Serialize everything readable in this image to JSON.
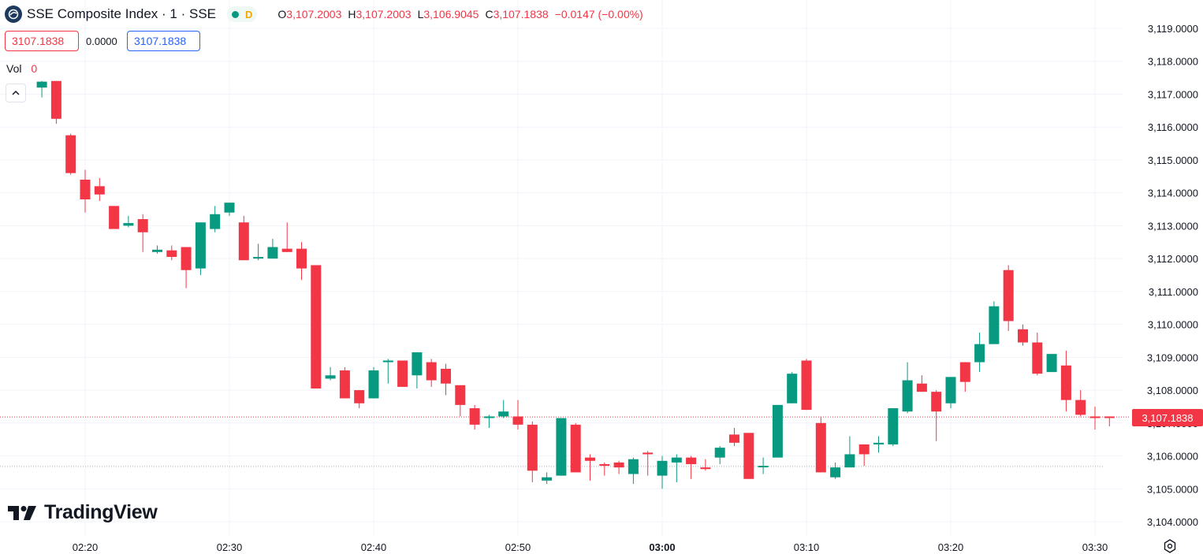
{
  "header": {
    "symbol": "SSE Composite Index",
    "interval": "1",
    "exchange": "SSE",
    "title_text": "SSE Composite Index · 1 · SSE",
    "status_badge": "D",
    "ohlc": {
      "o_label": "O",
      "o_value": "3,107.2003",
      "h_label": "H",
      "h_value": "3,107.2003",
      "l_label": "L",
      "l_value": "3,106.9045",
      "c_label": "C",
      "c_value": "3,107.1838",
      "change": "−0.0147 (−0.00%)"
    }
  },
  "quote": {
    "bid": "3107.1838",
    "spread": "0.0000",
    "ask": "3107.1838"
  },
  "volume": {
    "label": "Vol",
    "value": "0"
  },
  "branding": {
    "logo_text": "TradingView"
  },
  "colors": {
    "up": "#089981",
    "down": "#f23645",
    "grid": "#f0f3fa",
    "axis_text": "#131722"
  },
  "chart_data": {
    "type": "candlestick",
    "x_tick_labels": [
      "02:20",
      "02:30",
      "02:40",
      "02:50",
      "03:00",
      "03:10",
      "03:20",
      "03:30"
    ],
    "x_tick_minutes": [
      20,
      30,
      40,
      50,
      60,
      70,
      80,
      90
    ],
    "y_tick_labels": [
      "3,104.0000",
      "3,105.0000",
      "3,106.0000",
      "3,107.0000",
      "3,108.0000",
      "3,109.0000",
      "3,110.0000",
      "3,111.0000",
      "3,112.0000",
      "3,113.0000",
      "3,114.0000",
      "3,115.0000",
      "3,116.0000",
      "3,117.0000",
      "3,118.0000",
      "3,119.0000"
    ],
    "y_ticks": [
      3104,
      3105,
      3106,
      3107,
      3108,
      3109,
      3110,
      3111,
      3112,
      3113,
      3114,
      3115,
      3116,
      3117,
      3118,
      3119
    ],
    "ylim": [
      3103.8,
      3119.7
    ],
    "last_price": 3107.1838,
    "last_price_label": "3,107.1838",
    "reference_line": 3105.68,
    "candles": [
      {
        "t": 17,
        "o": 3117.2,
        "h": 3117.4,
        "l": 3116.9,
        "c": 3117.38
      },
      {
        "t": 18,
        "o": 3117.4,
        "h": 3117.4,
        "l": 3116.1,
        "c": 3116.25
      },
      {
        "t": 19,
        "o": 3115.75,
        "h": 3115.8,
        "l": 3114.55,
        "c": 3114.6
      },
      {
        "t": 20,
        "o": 3114.4,
        "h": 3114.7,
        "l": 3113.4,
        "c": 3113.8
      },
      {
        "t": 21,
        "o": 3114.2,
        "h": 3114.45,
        "l": 3113.75,
        "c": 3113.95
      },
      {
        "t": 22,
        "o": 3113.6,
        "h": 3113.6,
        "l": 3112.9,
        "c": 3112.9
      },
      {
        "t": 23,
        "o": 3113.0,
        "h": 3113.3,
        "l": 3112.95,
        "c": 3113.08
      },
      {
        "t": 24,
        "o": 3113.2,
        "h": 3113.35,
        "l": 3112.2,
        "c": 3112.8
      },
      {
        "t": 25,
        "o": 3112.2,
        "h": 3112.4,
        "l": 3112.15,
        "c": 3112.27
      },
      {
        "t": 26,
        "o": 3112.25,
        "h": 3112.4,
        "l": 3111.95,
        "c": 3112.05
      },
      {
        "t": 27,
        "o": 3112.35,
        "h": 3112.35,
        "l": 3111.1,
        "c": 3111.65
      },
      {
        "t": 28,
        "o": 3111.7,
        "h": 3113.1,
        "l": 3111.5,
        "c": 3113.1
      },
      {
        "t": 29,
        "o": 3112.9,
        "h": 3113.6,
        "l": 3112.8,
        "c": 3113.35
      },
      {
        "t": 30,
        "o": 3113.4,
        "h": 3113.7,
        "l": 3113.3,
        "c": 3113.7
      },
      {
        "t": 31,
        "o": 3113.1,
        "h": 3113.3,
        "l": 3111.95,
        "c": 3111.95
      },
      {
        "t": 32,
        "o": 3112.0,
        "h": 3112.45,
        "l": 3111.95,
        "c": 3112.05
      },
      {
        "t": 33,
        "o": 3112.0,
        "h": 3112.6,
        "l": 3112.0,
        "c": 3112.35
      },
      {
        "t": 34,
        "o": 3112.3,
        "h": 3113.1,
        "l": 3112.2,
        "c": 3112.2
      },
      {
        "t": 35,
        "o": 3112.3,
        "h": 3112.5,
        "l": 3111.35,
        "c": 3111.7
      },
      {
        "t": 36,
        "o": 3111.8,
        "h": 3111.8,
        "l": 3108.05,
        "c": 3108.05
      },
      {
        "t": 37,
        "o": 3108.35,
        "h": 3108.7,
        "l": 3108.3,
        "c": 3108.45
      },
      {
        "t": 38,
        "o": 3108.6,
        "h": 3108.7,
        "l": 3107.75,
        "c": 3107.75
      },
      {
        "t": 39,
        "o": 3108.0,
        "h": 3108.0,
        "l": 3107.45,
        "c": 3107.6
      },
      {
        "t": 40,
        "o": 3107.75,
        "h": 3108.7,
        "l": 3107.75,
        "c": 3108.6
      },
      {
        "t": 41,
        "o": 3108.85,
        "h": 3108.95,
        "l": 3108.2,
        "c": 3108.9
      },
      {
        "t": 42,
        "o": 3108.9,
        "h": 3108.9,
        "l": 3108.1,
        "c": 3108.1
      },
      {
        "t": 43,
        "o": 3108.45,
        "h": 3109.15,
        "l": 3108.05,
        "c": 3109.15
      },
      {
        "t": 44,
        "o": 3108.85,
        "h": 3108.95,
        "l": 3108.1,
        "c": 3108.3
      },
      {
        "t": 45,
        "o": 3108.65,
        "h": 3108.8,
        "l": 3107.85,
        "c": 3108.2
      },
      {
        "t": 46,
        "o": 3108.15,
        "h": 3108.15,
        "l": 3107.2,
        "c": 3107.55
      },
      {
        "t": 47,
        "o": 3107.45,
        "h": 3107.55,
        "l": 3106.8,
        "c": 3106.95
      },
      {
        "t": 48,
        "o": 3107.2,
        "h": 3107.25,
        "l": 3106.85,
        "c": 3107.2
      },
      {
        "t": 49,
        "o": 3107.2,
        "h": 3107.7,
        "l": 3107.15,
        "c": 3107.35
      },
      {
        "t": 50,
        "o": 3107.2,
        "h": 3107.7,
        "l": 3106.8,
        "c": 3106.95
      },
      {
        "t": 51,
        "o": 3106.95,
        "h": 3107.05,
        "l": 3105.2,
        "c": 3105.55
      },
      {
        "t": 52,
        "o": 3105.25,
        "h": 3105.5,
        "l": 3105.15,
        "c": 3105.35
      },
      {
        "t": 53,
        "o": 3105.4,
        "h": 3107.15,
        "l": 3105.4,
        "c": 3107.15
      },
      {
        "t": 54,
        "o": 3106.95,
        "h": 3107.0,
        "l": 3105.5,
        "c": 3105.5
      },
      {
        "t": 55,
        "o": 3105.95,
        "h": 3106.05,
        "l": 3105.25,
        "c": 3105.85
      },
      {
        "t": 56,
        "o": 3105.75,
        "h": 3105.8,
        "l": 3105.4,
        "c": 3105.7
      },
      {
        "t": 57,
        "o": 3105.8,
        "h": 3105.85,
        "l": 3105.45,
        "c": 3105.65
      },
      {
        "t": 58,
        "o": 3105.45,
        "h": 3105.95,
        "l": 3105.15,
        "c": 3105.9
      },
      {
        "t": 59,
        "o": 3106.1,
        "h": 3106.15,
        "l": 3105.4,
        "c": 3106.05
      },
      {
        "t": 60,
        "o": 3105.4,
        "h": 3106.0,
        "l": 3105.0,
        "c": 3105.85
      },
      {
        "t": 61,
        "o": 3105.8,
        "h": 3106.05,
        "l": 3105.2,
        "c": 3105.95
      },
      {
        "t": 62,
        "o": 3105.95,
        "h": 3106.0,
        "l": 3105.3,
        "c": 3105.75
      },
      {
        "t": 63,
        "o": 3105.65,
        "h": 3105.9,
        "l": 3105.55,
        "c": 3105.6
      },
      {
        "t": 64,
        "o": 3105.95,
        "h": 3106.3,
        "l": 3105.75,
        "c": 3106.25
      },
      {
        "t": 65,
        "o": 3106.65,
        "h": 3106.85,
        "l": 3106.3,
        "c": 3106.4
      },
      {
        "t": 66,
        "o": 3106.7,
        "h": 3106.7,
        "l": 3105.3,
        "c": 3105.3
      },
      {
        "t": 67,
        "o": 3105.7,
        "h": 3105.95,
        "l": 3105.45,
        "c": 3105.7
      },
      {
        "t": 68,
        "o": 3105.95,
        "h": 3107.55,
        "l": 3105.95,
        "c": 3107.55
      },
      {
        "t": 69,
        "o": 3107.6,
        "h": 3108.55,
        "l": 3107.6,
        "c": 3108.5
      },
      {
        "t": 70,
        "o": 3108.9,
        "h": 3108.95,
        "l": 3107.4,
        "c": 3107.4
      },
      {
        "t": 71,
        "o": 3107.0,
        "h": 3107.2,
        "l": 3105.5,
        "c": 3105.5
      },
      {
        "t": 72,
        "o": 3105.35,
        "h": 3105.8,
        "l": 3105.3,
        "c": 3105.65
      },
      {
        "t": 73,
        "o": 3105.65,
        "h": 3106.6,
        "l": 3105.65,
        "c": 3106.05
      },
      {
        "t": 74,
        "o": 3106.35,
        "h": 3106.35,
        "l": 3105.7,
        "c": 3106.05
      },
      {
        "t": 75,
        "o": 3106.35,
        "h": 3106.6,
        "l": 3106.1,
        "c": 3106.4
      },
      {
        "t": 76,
        "o": 3106.35,
        "h": 3107.45,
        "l": 3106.3,
        "c": 3107.45
      },
      {
        "t": 77,
        "o": 3107.35,
        "h": 3108.85,
        "l": 3107.3,
        "c": 3108.3
      },
      {
        "t": 78,
        "o": 3108.2,
        "h": 3108.45,
        "l": 3107.95,
        "c": 3107.95
      },
      {
        "t": 79,
        "o": 3107.95,
        "h": 3108.0,
        "l": 3106.45,
        "c": 3107.35
      },
      {
        "t": 80,
        "o": 3107.6,
        "h": 3108.4,
        "l": 3107.45,
        "c": 3108.4
      },
      {
        "t": 81,
        "o": 3108.85,
        "h": 3108.85,
        "l": 3107.95,
        "c": 3108.25
      },
      {
        "t": 82,
        "o": 3108.85,
        "h": 3109.75,
        "l": 3108.55,
        "c": 3109.4
      },
      {
        "t": 83,
        "o": 3109.4,
        "h": 3110.7,
        "l": 3109.4,
        "c": 3110.55
      },
      {
        "t": 84,
        "o": 3111.65,
        "h": 3111.8,
        "l": 3109.8,
        "c": 3110.1
      },
      {
        "t": 85,
        "o": 3109.85,
        "h": 3110.0,
        "l": 3109.35,
        "c": 3109.45
      },
      {
        "t": 86,
        "o": 3109.45,
        "h": 3109.75,
        "l": 3108.45,
        "c": 3108.5
      },
      {
        "t": 87,
        "o": 3108.55,
        "h": 3109.1,
        "l": 3108.55,
        "c": 3109.1
      },
      {
        "t": 88,
        "o": 3108.75,
        "h": 3109.2,
        "l": 3107.35,
        "c": 3107.7
      },
      {
        "t": 89,
        "o": 3107.7,
        "h": 3108.0,
        "l": 3107.2,
        "c": 3107.25
      },
      {
        "t": 90,
        "o": 3107.2,
        "h": 3107.5,
        "l": 3106.8,
        "c": 3107.18
      },
      {
        "t": 91,
        "o": 3107.2,
        "h": 3107.2,
        "l": 3106.9,
        "c": 3107.18
      }
    ]
  }
}
